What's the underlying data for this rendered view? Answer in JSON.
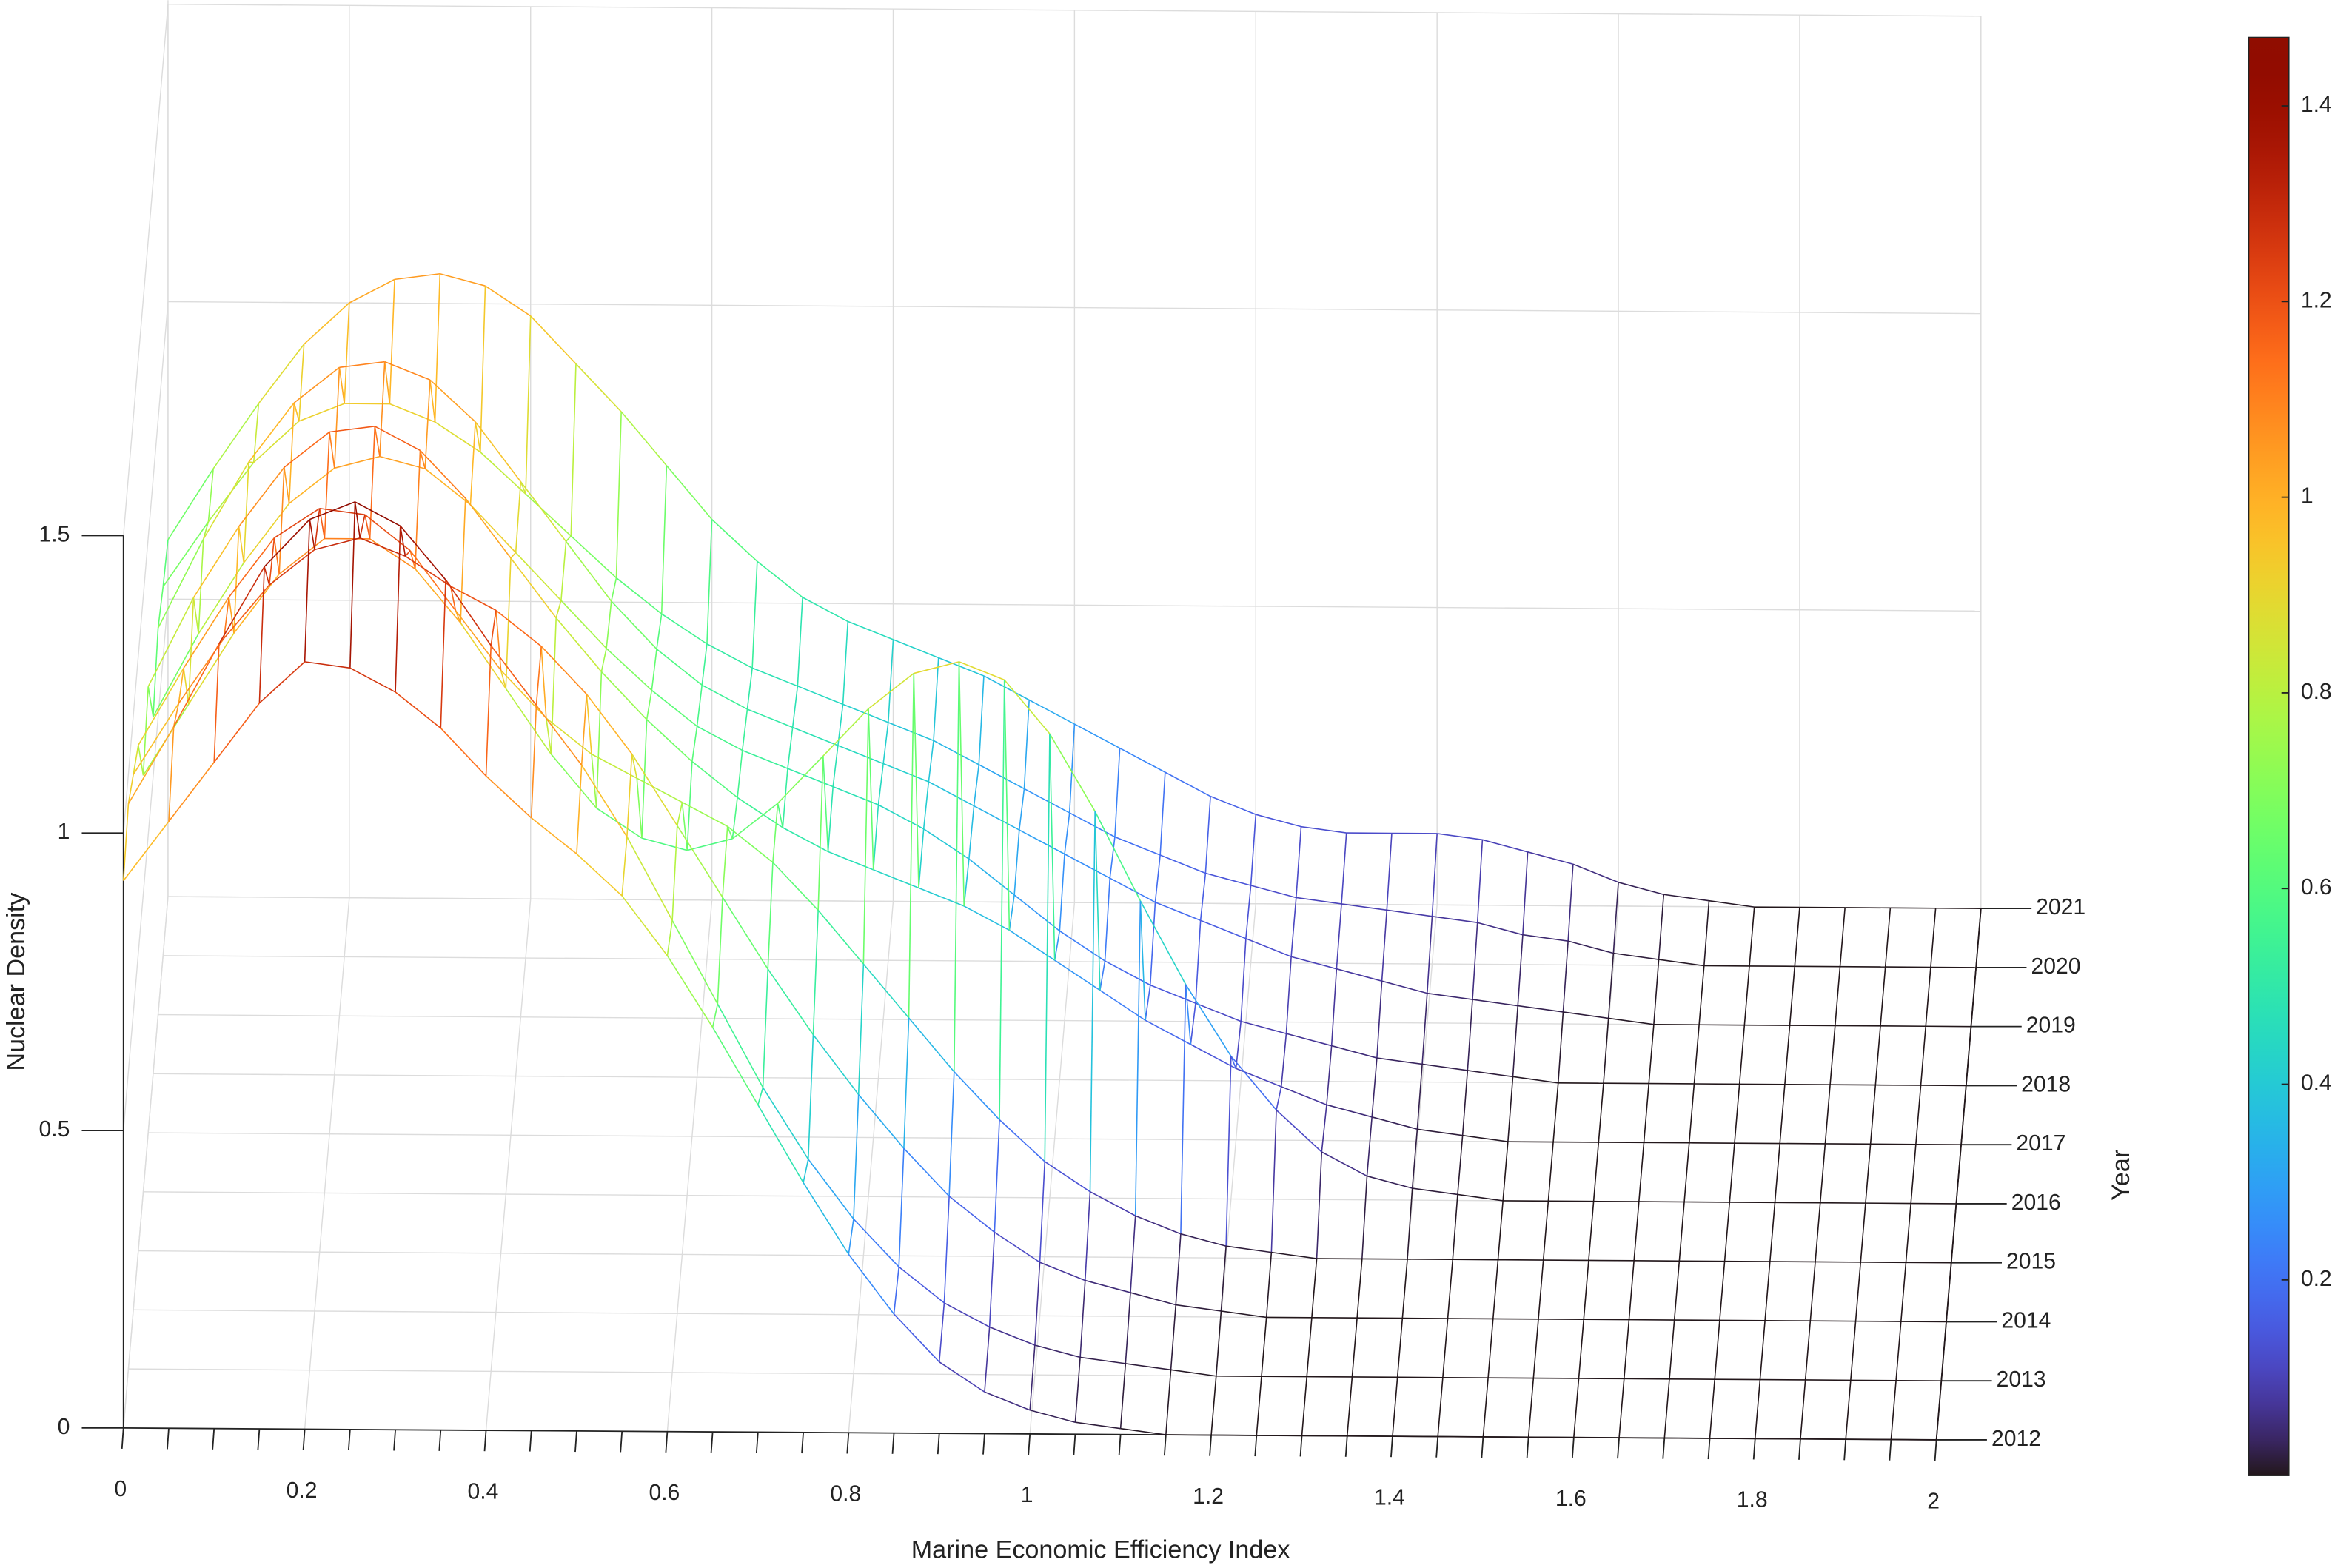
{
  "chart_data": {
    "type": "waterfall3d",
    "xlabel": "Marine Economic Efficiency Index",
    "zlabel": "Nuclear Density",
    "colorbar_label": "Year",
    "x": [
      0,
      0.05,
      0.1,
      0.15,
      0.2,
      0.25,
      0.3,
      0.35,
      0.4,
      0.45,
      0.5,
      0.55,
      0.6,
      0.65,
      0.7,
      0.75,
      0.8,
      0.85,
      0.9,
      0.95,
      1,
      1.05,
      1.1,
      1.15,
      1.2,
      1.25,
      1.3,
      1.35,
      1.4,
      1.45,
      1.5,
      1.55,
      1.6,
      1.65,
      1.7,
      1.75,
      1.8,
      1.85,
      1.9,
      1.95,
      2
    ],
    "series": [
      {
        "name": "2012",
        "values": [
          0.92,
          1.02,
          1.12,
          1.22,
          1.29,
          1.28,
          1.24,
          1.18,
          1.1,
          1.03,
          0.97,
          0.9,
          0.8,
          0.68,
          0.55,
          0.42,
          0.3,
          0.2,
          0.12,
          0.07,
          0.04,
          0.02,
          0.01,
          0,
          0,
          0,
          0,
          0,
          0,
          0,
          0,
          0,
          0,
          0,
          0,
          0,
          0,
          0,
          0,
          0,
          0
        ]
      },
      {
        "name": "2013",
        "values": [
          0.95,
          1.08,
          1.22,
          1.35,
          1.43,
          1.46,
          1.42,
          1.33,
          1.22,
          1.12,
          1.02,
          0.9,
          0.76,
          0.62,
          0.48,
          0.36,
          0.26,
          0.18,
          0.12,
          0.08,
          0.05,
          0.03,
          0.02,
          0.01,
          0,
          0,
          0,
          0,
          0,
          0,
          0,
          0,
          0,
          0,
          0,
          0,
          0,
          0,
          0,
          0,
          0
        ]
      },
      {
        "name": "2014",
        "values": [
          0.9,
          1.02,
          1.13,
          1.22,
          1.28,
          1.3,
          1.27,
          1.22,
          1.18,
          1.12,
          1.04,
          0.94,
          0.82,
          0.7,
          0.58,
          0.47,
          0.37,
          0.28,
          0.2,
          0.14,
          0.09,
          0.06,
          0.04,
          0.02,
          0.01,
          0,
          0,
          0,
          0,
          0,
          0,
          0,
          0,
          0,
          0,
          0,
          0,
          0,
          0,
          0,
          0
        ]
      },
      {
        "name": "2015",
        "values": [
          0.85,
          0.98,
          1.1,
          1.2,
          1.25,
          1.24,
          1.18,
          1.08,
          0.98,
          0.9,
          0.84,
          0.8,
          0.76,
          0.72,
          0.66,
          0.58,
          0.49,
          0.4,
          0.31,
          0.23,
          0.16,
          0.11,
          0.07,
          0.04,
          0.02,
          0.01,
          0,
          0,
          0,
          0,
          0,
          0,
          0,
          0,
          0,
          0,
          0,
          0,
          0,
          0,
          0
        ]
      },
      {
        "name": "2016",
        "values": [
          0.7,
          0.82,
          0.94,
          1.04,
          1.1,
          1.1,
          1.05,
          0.96,
          0.85,
          0.74,
          0.65,
          0.6,
          0.58,
          0.6,
          0.66,
          0.74,
          0.82,
          0.88,
          0.9,
          0.87,
          0.78,
          0.65,
          0.5,
          0.36,
          0.24,
          0.15,
          0.08,
          0.04,
          0.02,
          0.01,
          0,
          0,
          0,
          0,
          0,
          0,
          0,
          0,
          0,
          0,
          0
        ]
      },
      {
        "name": "2017",
        "values": [
          0.75,
          0.9,
          1.02,
          1.12,
          1.18,
          1.19,
          1.15,
          1.07,
          0.97,
          0.87,
          0.78,
          0.7,
          0.63,
          0.57,
          0.52,
          0.48,
          0.45,
          0.42,
          0.39,
          0.35,
          0.3,
          0.25,
          0.2,
          0.16,
          0.12,
          0.09,
          0.06,
          0.04,
          0.02,
          0.01,
          0,
          0,
          0,
          0,
          0,
          0,
          0,
          0,
          0,
          0,
          0
        ]
      },
      {
        "name": "2018",
        "values": [
          0.6,
          0.74,
          0.86,
          0.96,
          1.02,
          1.04,
          1.02,
          0.96,
          0.88,
          0.8,
          0.72,
          0.65,
          0.59,
          0.55,
          0.52,
          0.49,
          0.46,
          0.42,
          0.37,
          0.31,
          0.25,
          0.2,
          0.16,
          0.13,
          0.1,
          0.08,
          0.06,
          0.04,
          0.03,
          0.02,
          0.01,
          0,
          0,
          0,
          0,
          0,
          0,
          0,
          0,
          0,
          0
        ]
      },
      {
        "name": "2019",
        "values": [
          0.65,
          0.8,
          0.93,
          1.03,
          1.09,
          1.1,
          1.07,
          1,
          0.9,
          0.8,
          0.7,
          0.62,
          0.56,
          0.52,
          0.49,
          0.46,
          0.43,
          0.4,
          0.36,
          0.32,
          0.28,
          0.24,
          0.2,
          0.17,
          0.14,
          0.11,
          0.09,
          0.07,
          0.05,
          0.04,
          0.03,
          0.02,
          0.01,
          0,
          0,
          0,
          0,
          0,
          0,
          0,
          0
        ]
      },
      {
        "name": "2020",
        "values": [
          0.62,
          0.73,
          0.83,
          0.9,
          0.93,
          0.93,
          0.9,
          0.85,
          0.78,
          0.71,
          0.64,
          0.58,
          0.53,
          0.49,
          0.46,
          0.43,
          0.4,
          0.37,
          0.33,
          0.29,
          0.25,
          0.21,
          0.18,
          0.15,
          0.13,
          0.11,
          0.1,
          0.09,
          0.08,
          0.07,
          0.05,
          0.04,
          0.02,
          0.01,
          0,
          0,
          0,
          0,
          0,
          0,
          0
        ]
      },
      {
        "name": "2021",
        "values": [
          0.6,
          0.72,
          0.83,
          0.93,
          1,
          1.04,
          1.05,
          1.03,
          0.98,
          0.9,
          0.82,
          0.73,
          0.64,
          0.57,
          0.51,
          0.47,
          0.44,
          0.41,
          0.38,
          0.34,
          0.3,
          0.26,
          0.22,
          0.18,
          0.15,
          0.13,
          0.12,
          0.12,
          0.12,
          0.11,
          0.09,
          0.07,
          0.04,
          0.02,
          0.01,
          0,
          0,
          0,
          0,
          0,
          0
        ]
      }
    ],
    "xlim": [
      0,
      2
    ],
    "xticks": [
      0,
      0.2,
      0.4,
      0.6,
      0.8,
      1,
      1.2,
      1.4,
      1.6,
      1.8,
      2
    ],
    "zlim": [
      0,
      1.5
    ],
    "zticks": [
      0,
      0.5,
      1,
      1.5
    ],
    "colormap": "turbo",
    "clim": [
      0,
      1.47
    ],
    "cticks": [
      0.2,
      0.4,
      0.6,
      0.8,
      1,
      1.2,
      1.4
    ],
    "grid": true
  }
}
